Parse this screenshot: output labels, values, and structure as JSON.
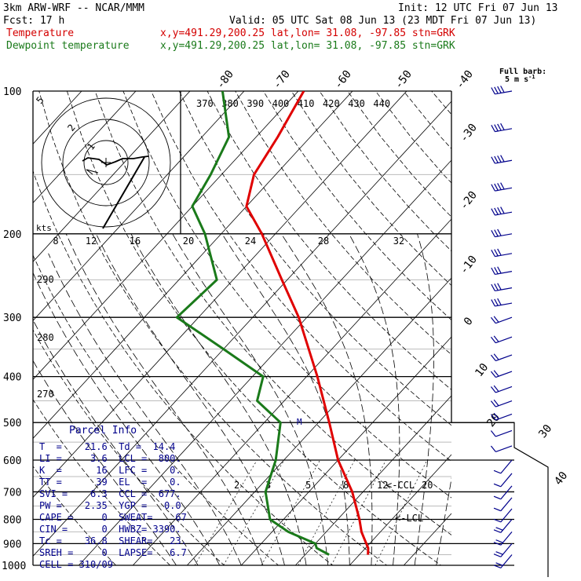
{
  "header": {
    "model": "3km ARW-WRF -- NCAR/MMM",
    "init": "Init: 12 UTC Fri 07 Jun 13",
    "fcst": "Fcst:   17 h",
    "valid": "Valid: 05 UTC Sat 08 Jun 13 (23 MDT Fri 07 Jun 13)",
    "temp_label": "Temperature",
    "temp_info": "x,y=491.29,200.25   lat,lon= 31.08, -97.85  stn=GRK",
    "dew_label": "Dewpoint temperature",
    "dew_info": "x,y=491.29,200.25   lat,lon= 31.08, -97.85  stn=GRK"
  },
  "chart_data": {
    "type": "line",
    "title": "",
    "xlabel": "Temperature",
    "ylabel": "Pressure",
    "y_scale": "log-pressure",
    "pressure_ticks": [
      "100",
      "200",
      "300",
      "400",
      "500",
      "600",
      "700",
      "800",
      "900",
      "1000"
    ],
    "temperature_ticks_top": [
      "-80",
      "-70",
      "-60",
      "-50",
      "-40"
    ],
    "temperature_ticks_right": [
      "-30",
      "-20",
      "-10",
      "0",
      "10",
      "20",
      "30",
      "40"
    ],
    "theta_labels": [
      "370",
      "380",
      "390",
      "400",
      "410",
      "420",
      "430",
      "440"
    ],
    "theta_left_labels": [
      "290",
      "280",
      "270"
    ],
    "hodograph_speed_ticks": [
      "8",
      "12",
      "16",
      "20",
      "24",
      "28",
      "32"
    ],
    "hodograph_unit": "kts",
    "hodograph_ring_labels": [
      "5",
      "2",
      "1"
    ],
    "mixing_ratio_labels": [
      "2",
      "3",
      "5",
      "8",
      "12",
      "20"
    ],
    "annotations": [
      "<-CCL",
      "<-LCL",
      "M"
    ],
    "series": [
      {
        "name": "Temperature",
        "color": "#e00000",
        "points": [
          {
            "p": 950,
            "t": 21.6
          },
          {
            "p": 920,
            "t": 20.5
          },
          {
            "p": 850,
            "t": 16.5
          },
          {
            "p": 800,
            "t": 14.0
          },
          {
            "p": 700,
            "t": 8.0
          },
          {
            "p": 600,
            "t": 0.0
          },
          {
            "p": 500,
            "t": -8.0
          },
          {
            "p": 400,
            "t": -18.0
          },
          {
            "p": 300,
            "t": -31.5
          },
          {
            "p": 250,
            "t": -41.0
          },
          {
            "p": 200,
            "t": -52.5
          },
          {
            "p": 175,
            "t": -60.0
          },
          {
            "p": 150,
            "t": -64.0
          },
          {
            "p": 125,
            "t": -66.0
          },
          {
            "p": 100,
            "t": -69.0
          }
        ]
      },
      {
        "name": "Dewpoint temperature",
        "color": "#1a7a1a",
        "points": [
          {
            "p": 950,
            "t": 14.4
          },
          {
            "p": 920,
            "t": 11.0
          },
          {
            "p": 900,
            "t": 10.0
          },
          {
            "p": 850,
            "t": 3.0
          },
          {
            "p": 800,
            "t": -2.5
          },
          {
            "p": 700,
            "t": -8.0
          },
          {
            "p": 600,
            "t": -11.5
          },
          {
            "p": 500,
            "t": -17.0
          },
          {
            "p": 450,
            "t": -25.0
          },
          {
            "p": 400,
            "t": -28.0
          },
          {
            "p": 350,
            "t": -40.0
          },
          {
            "p": 300,
            "t": -54.0
          },
          {
            "p": 250,
            "t": -53.0
          },
          {
            "p": 200,
            "t": -63.0
          },
          {
            "p": 175,
            "t": -70.0
          },
          {
            "p": 150,
            "t": -72.0
          },
          {
            "p": 125,
            "t": -75.0
          },
          {
            "p": 100,
            "t": -84.0
          }
        ]
      }
    ]
  },
  "parcel_info": {
    "title": "Parcel Info",
    "rows": [
      "T  =    21.6  Td =  14.4",
      "LI =     3.6  LCL =  800.",
      "K  =      16  LFC =    0.",
      "TT =      39  EL  =    0.",
      "SVI =    6.3  CCL =  677.",
      "PW =    2.35  YGP =   0.0",
      "CAPE =     0  SWEAT=    67",
      "CIN =      0  HWBZ= 3390.",
      "Tc =    36.8  SHEAR=   23.",
      "SREH =     0  LAPSE=   6.7",
      "CELL = 310/09"
    ]
  },
  "wind_panel": {
    "legend_title": "Full barb:",
    "legend_value": "5 m s",
    "legend_exp": "-1"
  }
}
